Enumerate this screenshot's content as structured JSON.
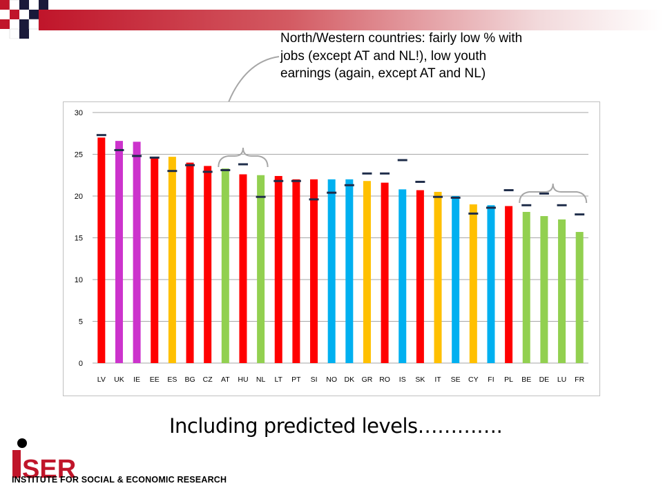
{
  "annotation": {
    "line1": "North/Western countries: fairly low % with",
    "line2": "jobs (except AT and NL!), low youth",
    "line3": "earnings (again, except AT and NL)"
  },
  "subtitle": "Including predicted levels………….",
  "logo": {
    "lettering": "iSER",
    "institute": "INSTITUTE FOR SOCIAL & ECONOMIC RESEARCH"
  },
  "chart_data": {
    "type": "bar",
    "title": "",
    "xlabel": "",
    "ylabel": "",
    "ylim": [
      0,
      30
    ],
    "yticks": [
      "0",
      "5",
      "10",
      "15",
      "20",
      "25",
      "30"
    ],
    "grid": true,
    "categories": [
      "LV",
      "UK",
      "IE",
      "EE",
      "ES",
      "BG",
      "CZ",
      "AT",
      "HU",
      "NL",
      "LT",
      "PT",
      "SI",
      "NO",
      "DK",
      "GR",
      "RO",
      "IS",
      "SK",
      "IT",
      "SE",
      "CY",
      "FI",
      "PL",
      "BE",
      "DE",
      "LU",
      "FR"
    ],
    "values": [
      27.0,
      26.6,
      26.5,
      24.6,
      24.7,
      24.0,
      23.6,
      23.3,
      22.6,
      22.5,
      22.4,
      22.0,
      22.0,
      22.0,
      22.0,
      21.8,
      21.6,
      20.8,
      20.7,
      20.5,
      20.0,
      19.0,
      18.9,
      18.8,
      18.1,
      17.6,
      17.2,
      15.7
    ],
    "predicted": [
      27.3,
      25.5,
      24.8,
      24.6,
      23.0,
      23.7,
      22.9,
      23.1,
      23.8,
      19.9,
      21.8,
      21.8,
      19.6,
      20.4,
      21.3,
      22.7,
      22.7,
      24.3,
      21.7,
      19.9,
      19.8,
      17.9,
      18.6,
      20.7,
      18.9,
      20.3,
      18.9,
      17.8
    ],
    "bar_colors": [
      "#ff0000",
      "#cc33cc",
      "#cc33cc",
      "#ff0000",
      "#ffc000",
      "#ff0000",
      "#ff0000",
      "#92d050",
      "#ff0000",
      "#92d050",
      "#ff0000",
      "#ff0000",
      "#ff0000",
      "#00b0f0",
      "#00b0f0",
      "#ffc000",
      "#ff0000",
      "#00b0f0",
      "#ff0000",
      "#ffc000",
      "#00b0f0",
      "#ffc000",
      "#00b0f0",
      "#ff0000",
      "#92d050",
      "#92d050",
      "#92d050",
      "#92d050"
    ],
    "predicted_marker_color": "#1f2d4a",
    "highlight_brace_color": "#a6a6a6"
  },
  "colors": {
    "brand_red": "#c0152a",
    "checker_dark": "#1a1a3a"
  }
}
